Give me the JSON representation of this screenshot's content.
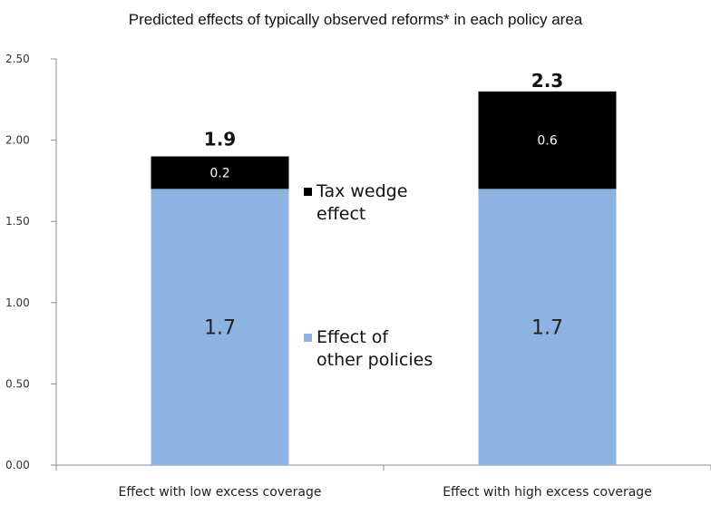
{
  "chart_data": {
    "type": "bar",
    "stacked": true,
    "title": "Predicted effects of typically observed reforms* in each policy area",
    "categories": [
      "Effect with low excess coverage",
      "Effect with high excess coverage"
    ],
    "series": [
      {
        "name": "Effect of other policies",
        "color": "#8db3e2",
        "values": [
          1.7,
          1.7
        ],
        "labels": [
          "1.7",
          "1.7"
        ]
      },
      {
        "name": "Tax wedge effect",
        "color": "#000000",
        "values": [
          0.2,
          0.6
        ],
        "labels": [
          "0.2",
          "0.6"
        ]
      }
    ],
    "totals": [
      "1.9",
      "2.3"
    ],
    "total_values": [
      1.89,
      2.25
    ],
    "ylim": [
      0,
      2.5
    ],
    "yticks": [
      "0.00",
      "0.50",
      "1.00",
      "1.50",
      "2.00",
      "2.50"
    ],
    "ytick_values": [
      0,
      0.5,
      1.0,
      1.5,
      2.0,
      2.5
    ],
    "legend": [
      {
        "lines": [
          "Tax wedge",
          "effect"
        ],
        "color": "#000000"
      },
      {
        "lines": [
          "Effect of",
          "other policies"
        ],
        "color": "#8db3e2"
      }
    ],
    "grid": false,
    "legend_position": "center"
  }
}
